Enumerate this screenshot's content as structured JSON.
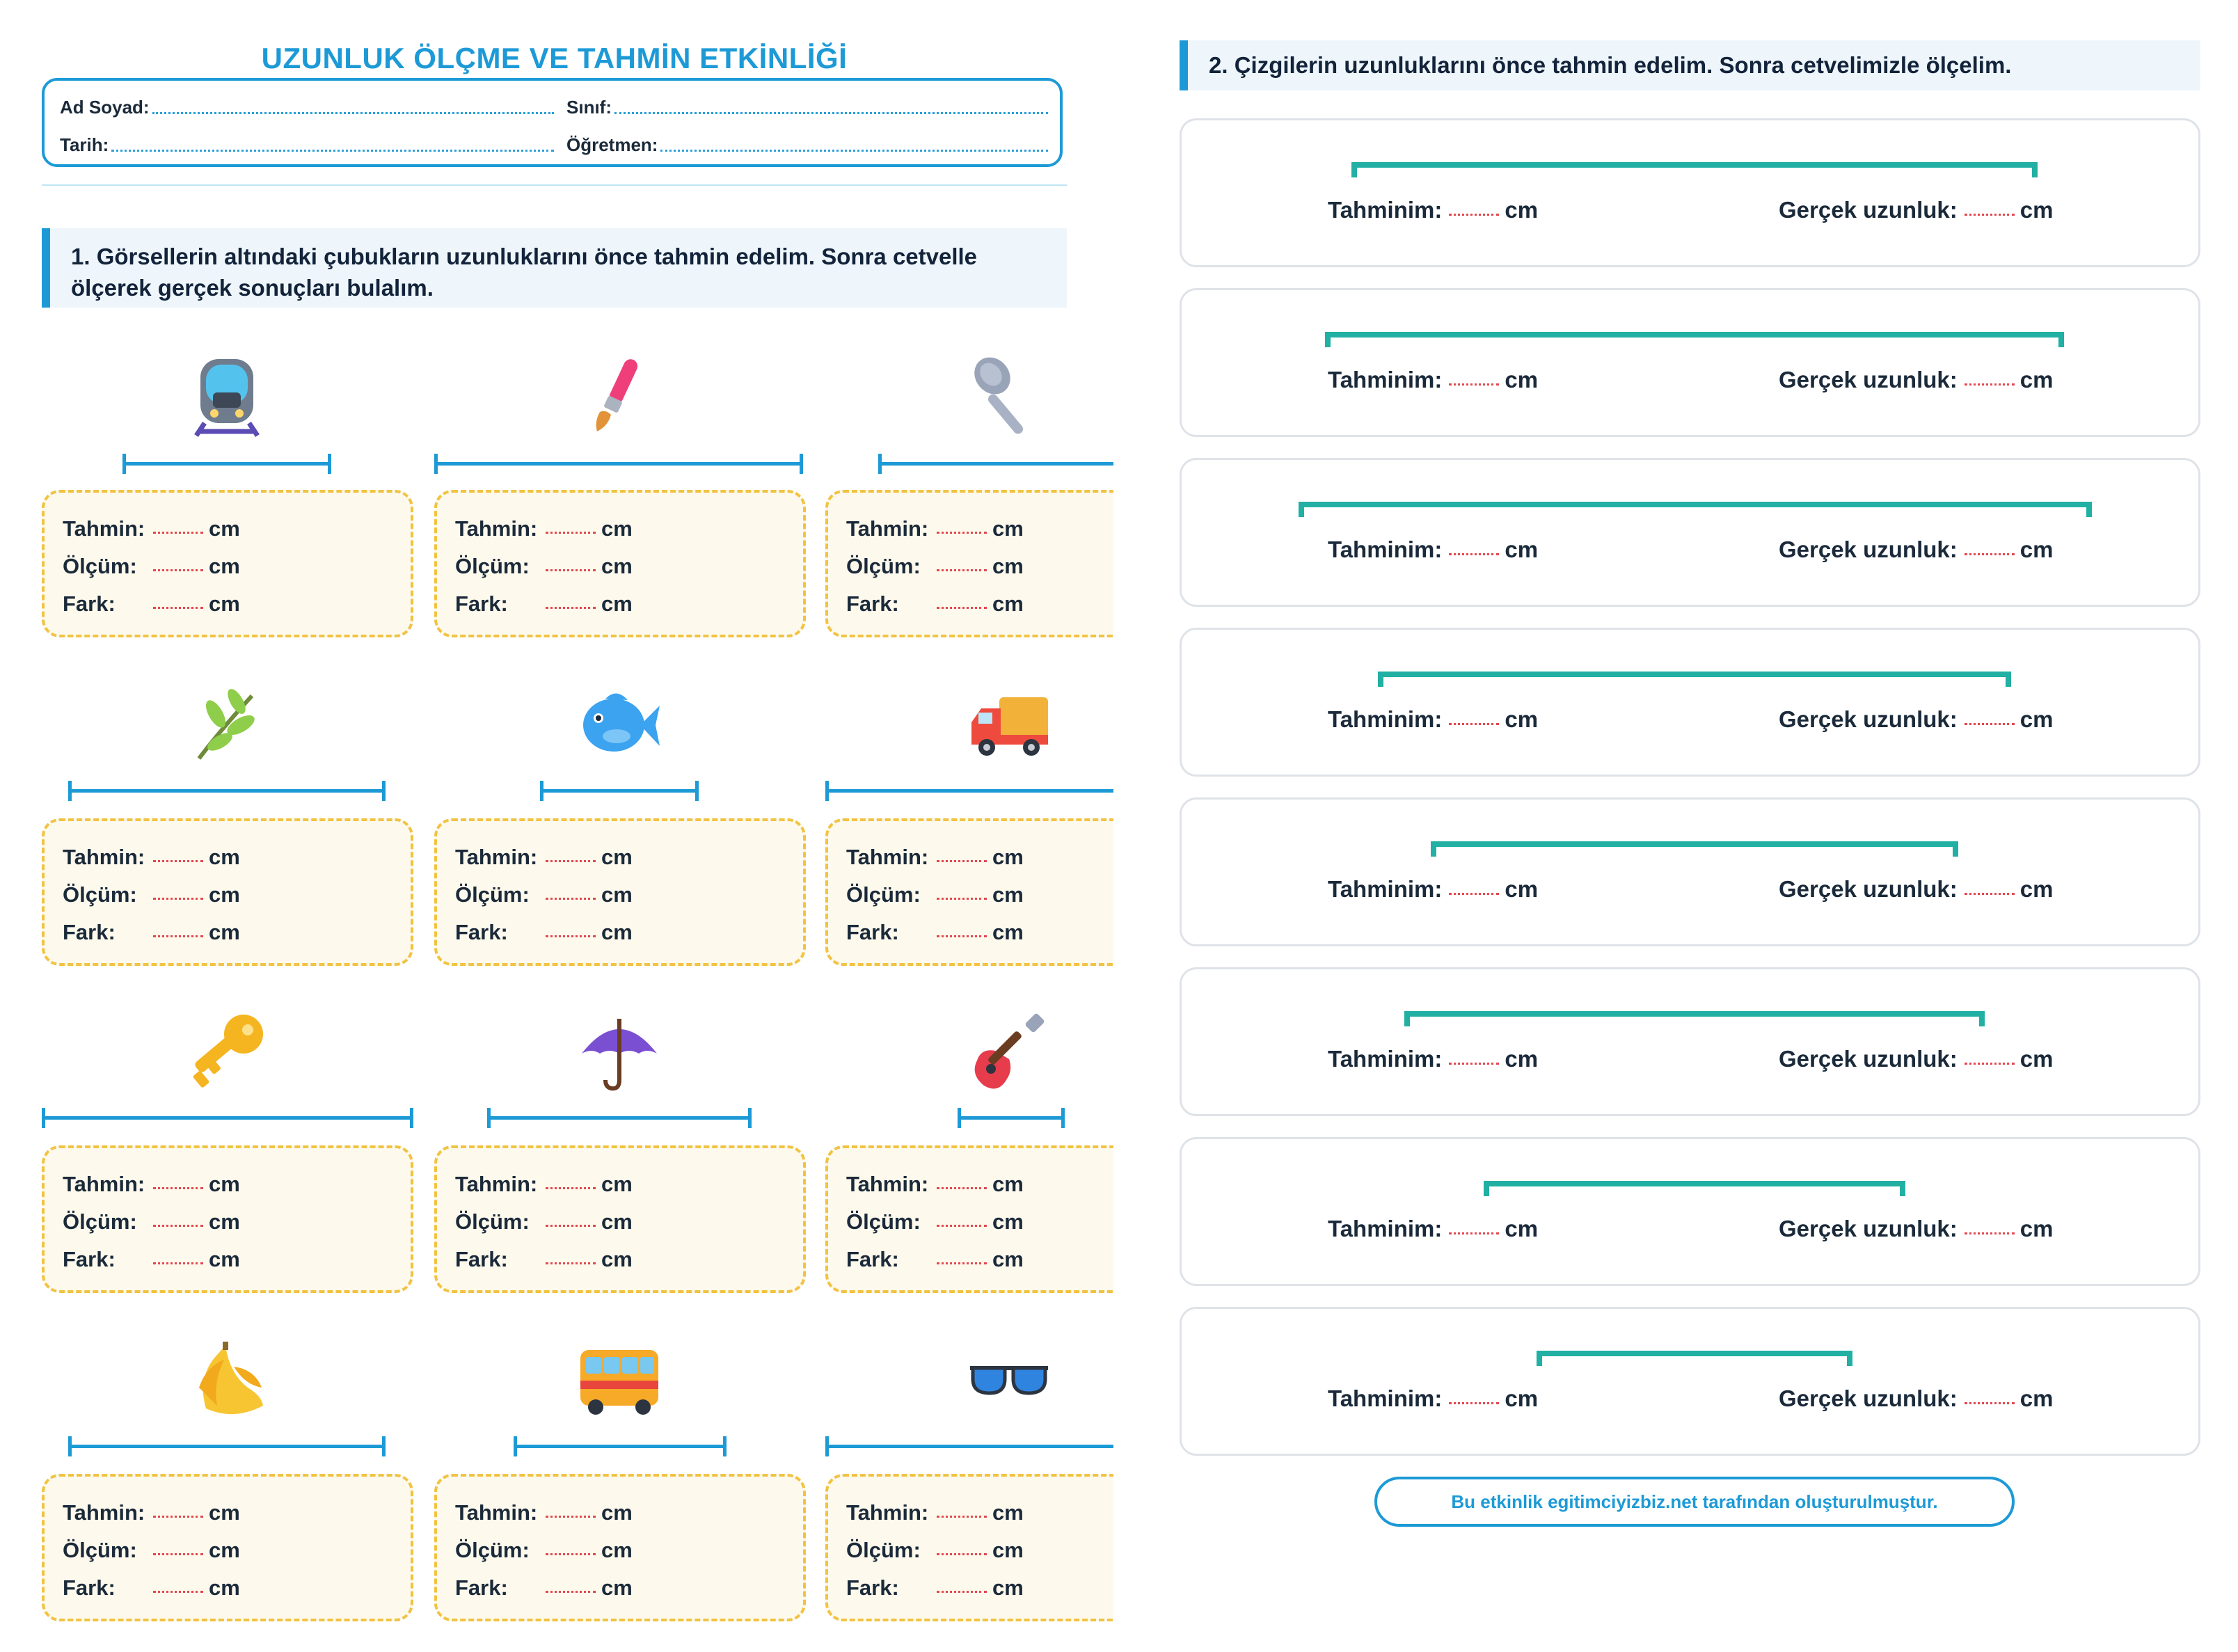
{
  "worksheet": {
    "title": "UZUNLUK ÖLÇME VE TAHMİN ETKİNLİĞİ",
    "fields": {
      "name_label": "Ad Soyad:",
      "class_label": "Sınıf:",
      "date_label": "Tarih:",
      "teacher_label": "Öğretmen:"
    }
  },
  "section1": {
    "heading": "1. Görsellerin altındaki çubukların uzunluklarını önce tahmin edelim. Sonra cetvelle ölçerek gerçek sonuçları bulalım.",
    "labels": {
      "estimate": "Tahmin:",
      "measure": "Ölçüm:",
      "diff": "Fark:",
      "unit": "cm"
    },
    "items": [
      {
        "icon": "train-icon"
      },
      {
        "icon": "paintbrush-icon"
      },
      {
        "icon": "spoon-icon"
      },
      {
        "icon": "branch-icon"
      },
      {
        "icon": "fish-icon"
      },
      {
        "icon": "truck-icon"
      },
      {
        "icon": "key-icon"
      },
      {
        "icon": "umbrella-icon"
      },
      {
        "icon": "guitar-icon"
      },
      {
        "icon": "banana-icon"
      },
      {
        "icon": "bus-icon"
      },
      {
        "icon": "sunglasses-icon"
      }
    ]
  },
  "section2": {
    "heading": "2. Çizgilerin uzunluklarını önce tahmin edelim. Sonra cetvelimizle ölçelim.",
    "labels": {
      "estimate": "Tahminim:",
      "actual": "Gerçek uzunluk:",
      "unit": "cm"
    },
    "line_count": 8
  },
  "footer": "Bu etkinlik egitimciyizbiz.net tarafından oluşturulmuştur.",
  "colors": {
    "primary": "#1d9ad6",
    "teal": "#21b0a3",
    "card_border": "#f1c342",
    "card_bg": "#fdf9ec",
    "dots": "#e2474f"
  }
}
